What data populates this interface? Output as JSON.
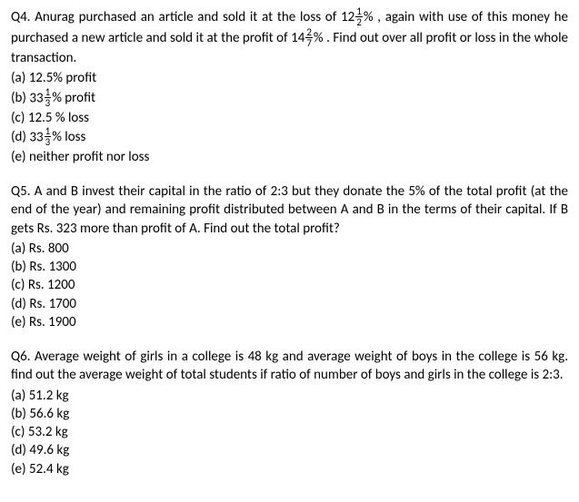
{
  "questions": [
    {
      "number": "Q4.",
      "text_parts": [
        "Anurag purchased an article and sold it at the loss of 12",
        "% , again with use of this money he purchased a new article and sold it at the profit of 14",
        "% . Find out over all profit or loss in the whole transaction."
      ],
      "fractions": [
        {
          "num": "1",
          "den": "2"
        },
        {
          "num": "2",
          "den": "7"
        }
      ],
      "options": [
        {
          "label": "(a)",
          "text": "12.5% profit",
          "has_fraction": false
        },
        {
          "label": "(b)",
          "prefix": "33",
          "fraction": {
            "num": "1",
            "den": "3"
          },
          "suffix": "% profit",
          "has_fraction": true
        },
        {
          "label": "(c)",
          "text": "12.5 % loss",
          "has_fraction": false
        },
        {
          "label": "(d)",
          "prefix": "33",
          "fraction": {
            "num": "1",
            "den": "3"
          },
          "suffix": "% loss",
          "has_fraction": true
        },
        {
          "label": "(e)",
          "text": "neither profit nor loss",
          "has_fraction": false
        }
      ]
    },
    {
      "number": "Q5.",
      "text": "A and B invest their capital in the ratio of 2:3 but they donate the 5% of the total profit (at the end of the year) and remaining profit distributed between A and B in the terms of their capital. If B gets Rs. 323 more than profit of A. Find out the total profit?",
      "options": [
        {
          "label": "(a)",
          "text": "Rs. 800"
        },
        {
          "label": "(b)",
          "text": "Rs. 1300"
        },
        {
          "label": "(c)",
          "text": "Rs. 1200"
        },
        {
          "label": "(d)",
          "text": "Rs. 1700"
        },
        {
          "label": "(e)",
          "text": "Rs. 1900"
        }
      ]
    },
    {
      "number": "Q6.",
      "text": "Average weight of girls in a college is 48 kg and average weight of boys in the college is 56 kg. find out the average weight of total students if ratio of number of boys and girls in the college is 2:3.",
      "options": [
        {
          "label": "(a)",
          "text": "51.2 kg"
        },
        {
          "label": "(b)",
          "text": "56.6 kg"
        },
        {
          "label": "(c)",
          "text": "53.2 kg"
        },
        {
          "label": "(d)",
          "text": "49.6 kg"
        },
        {
          "label": "(e)",
          "text": "52.4 kg"
        }
      ]
    }
  ]
}
